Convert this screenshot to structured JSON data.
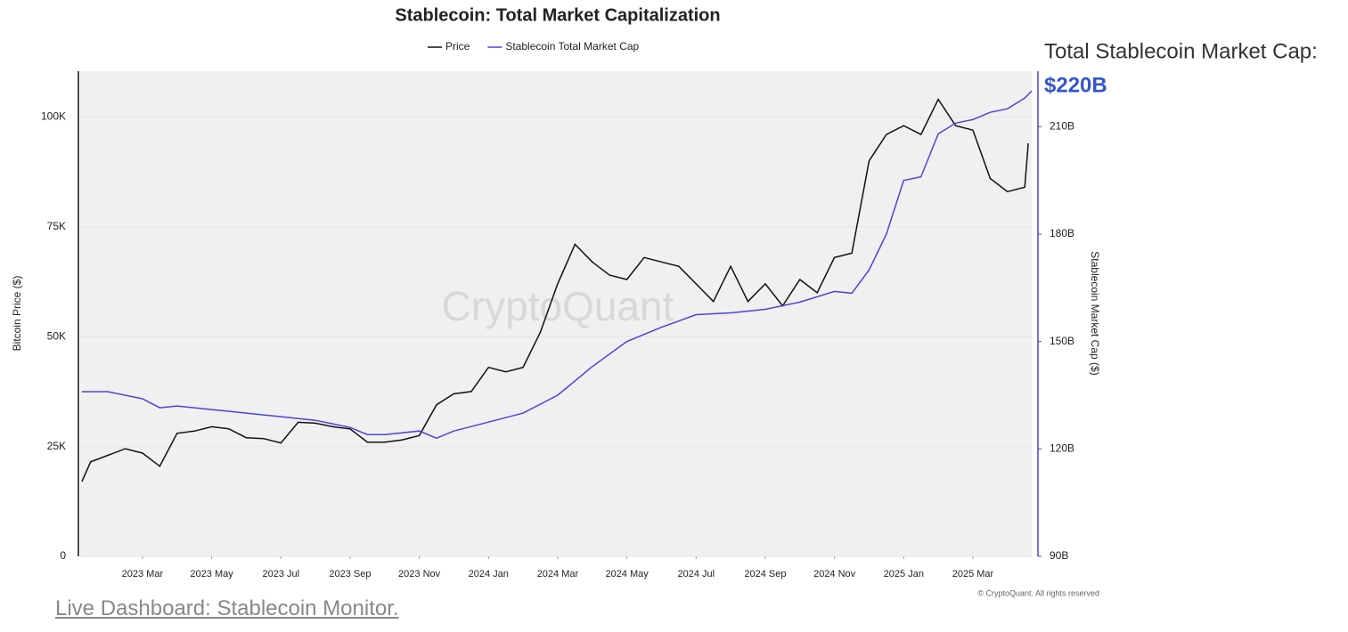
{
  "chart_data": {
    "type": "line",
    "title": "Stablecoin: Total Market Capitalization",
    "y_label": "Bitcoin Price ($)",
    "y2_label": "Stablecoin Market Cap ($)",
    "watermark": "CryptoQuant",
    "copyright": "© CryptoQuant. All rights reserved",
    "annotation": {
      "label": "Total Stablecoin Market Cap:",
      "value": 220,
      "value_label": "$220B"
    },
    "link": "Live Dashboard: Stablecoin Monitor.",
    "xlim": [
      0.2,
      27.7
    ],
    "xticks": [
      {
        "value": 2,
        "label": "2023 Mar"
      },
      {
        "value": 4,
        "label": "2023 May"
      },
      {
        "value": 6,
        "label": "2023 Jul"
      },
      {
        "value": 8,
        "label": "2023 Sep"
      },
      {
        "value": 10,
        "label": "2023 Nov"
      },
      {
        "value": 12,
        "label": "2024 Jan"
      },
      {
        "value": 14,
        "label": "2024 Mar"
      },
      {
        "value": 16,
        "label": "2024 May"
      },
      {
        "value": 18,
        "label": "2024 Jul"
      },
      {
        "value": 20,
        "label": "2024 Sep"
      },
      {
        "value": 22,
        "label": "2024 Nov"
      },
      {
        "value": 24,
        "label": "2025 Jan"
      },
      {
        "value": 26,
        "label": "2025 Mar"
      }
    ],
    "ylim": [
      0,
      110000
    ],
    "yticks": [
      0,
      {
        "value": 25000,
        "label": "25K"
      },
      {
        "value": 50000,
        "label": "50K"
      },
      {
        "value": 75000,
        "label": "75K"
      },
      {
        "value": 100000,
        "label": "100K"
      }
    ],
    "y2lim": [
      90,
      225
    ],
    "y2ticks": [
      {
        "value": 90,
        "label": "90B"
      },
      {
        "value": 120,
        "label": "120B"
      },
      {
        "value": 150,
        "label": "150B"
      },
      {
        "value": 180,
        "label": "180B"
      },
      {
        "value": 210,
        "label": "210B"
      }
    ],
    "grid": true,
    "series": [
      {
        "name": "Price",
        "color": "#111111",
        "x": [
          0.25,
          0.5,
          1,
          1.5,
          2,
          2.5,
          3,
          3.5,
          4,
          4.5,
          5,
          5.5,
          6,
          6.5,
          7,
          7.5,
          8,
          8.5,
          9,
          9.5,
          10,
          10.5,
          11,
          11.5,
          12,
          12.5,
          13,
          13.5,
          14,
          14.5,
          15,
          15.5,
          16,
          16.5,
          17,
          17.5,
          18,
          18.5,
          19,
          19.5,
          20,
          20.5,
          21,
          21.5,
          22,
          22.5,
          23,
          23.5,
          24,
          24.5,
          25,
          25.5,
          26,
          26.5,
          27,
          27.5,
          27.6
        ],
        "values": [
          17000,
          21500,
          23000,
          24500,
          23500,
          20500,
          28000,
          28500,
          29500,
          29000,
          27000,
          26800,
          25800,
          30500,
          30300,
          29500,
          29000,
          26000,
          26000,
          26500,
          27500,
          34500,
          37000,
          37500,
          43000,
          42000,
          43000,
          51000,
          62000,
          71000,
          67000,
          64000,
          63000,
          68000,
          67000,
          66000,
          62000,
          58000,
          66000,
          58000,
          62000,
          57000,
          63000,
          60000,
          68000,
          69000,
          90000,
          96000,
          98000,
          96000,
          104000,
          98000,
          97000,
          86000,
          83000,
          84000,
          94000
        ]
      },
      {
        "name": "Stablecoin Total Market Cap",
        "color": "#4b45d6",
        "axis": "y2",
        "x": [
          0.25,
          1,
          2,
          2.5,
          3,
          4,
          5,
          6,
          7,
          8,
          8.5,
          9,
          10,
          10.5,
          11,
          12,
          13,
          14,
          15,
          16,
          17,
          18,
          19,
          20,
          21,
          22,
          22.5,
          23,
          23.5,
          24,
          24.5,
          25,
          25.5,
          26,
          26.5,
          27,
          27.5,
          27.7
        ],
        "values": [
          136,
          136,
          134,
          131.5,
          132,
          131,
          130,
          129,
          128,
          126,
          124,
          124,
          125,
          123,
          125,
          127.5,
          130,
          135,
          143,
          150,
          154,
          157.5,
          158,
          159,
          161,
          164,
          163.5,
          170,
          180,
          195,
          196,
          208,
          211,
          212,
          214,
          215,
          218,
          220
        ]
      }
    ]
  }
}
